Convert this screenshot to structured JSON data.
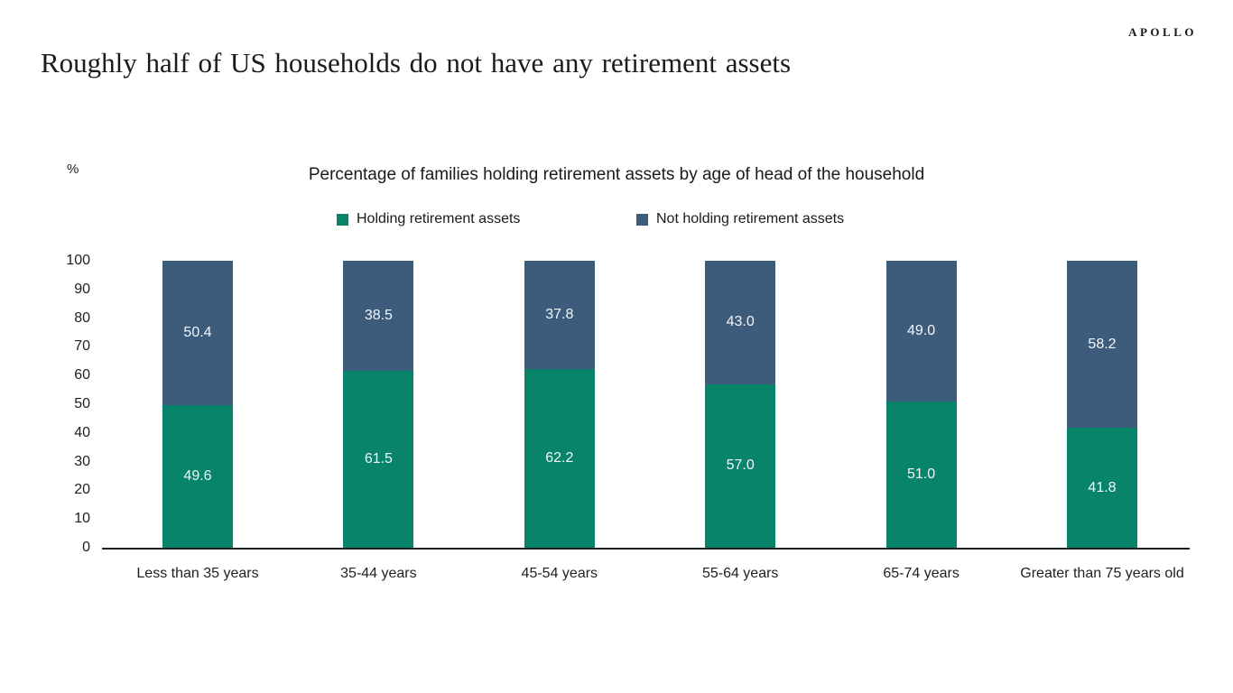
{
  "brand": {
    "logo": "APOLLO"
  },
  "page_title": "Roughly half of US households do not have any retirement assets",
  "chart_data": {
    "type": "bar",
    "subtype": "stacked-column",
    "title": "Percentage of families holding retirement assets by age of head of the household",
    "unit_label": "%",
    "categories": [
      "Less than 35 years",
      "35-44 years",
      "45-54 years",
      "55-64 years",
      "65-74 years",
      "Greater than 75 years old"
    ],
    "series": [
      {
        "name": "Holding retirement assets",
        "color": "#08846B",
        "values": [
          49.6,
          61.5,
          62.2,
          57.0,
          51.0,
          41.8
        ]
      },
      {
        "name": "Not holding retirement assets",
        "color": "#3D5C7C",
        "values": [
          50.4,
          38.5,
          37.8,
          43.0,
          49.0,
          58.2
        ]
      }
    ],
    "ylim": [
      0,
      100
    ],
    "ytick_step": 10,
    "legend_position": "top",
    "grid": false,
    "value_label_color": "#f2f6f8"
  }
}
